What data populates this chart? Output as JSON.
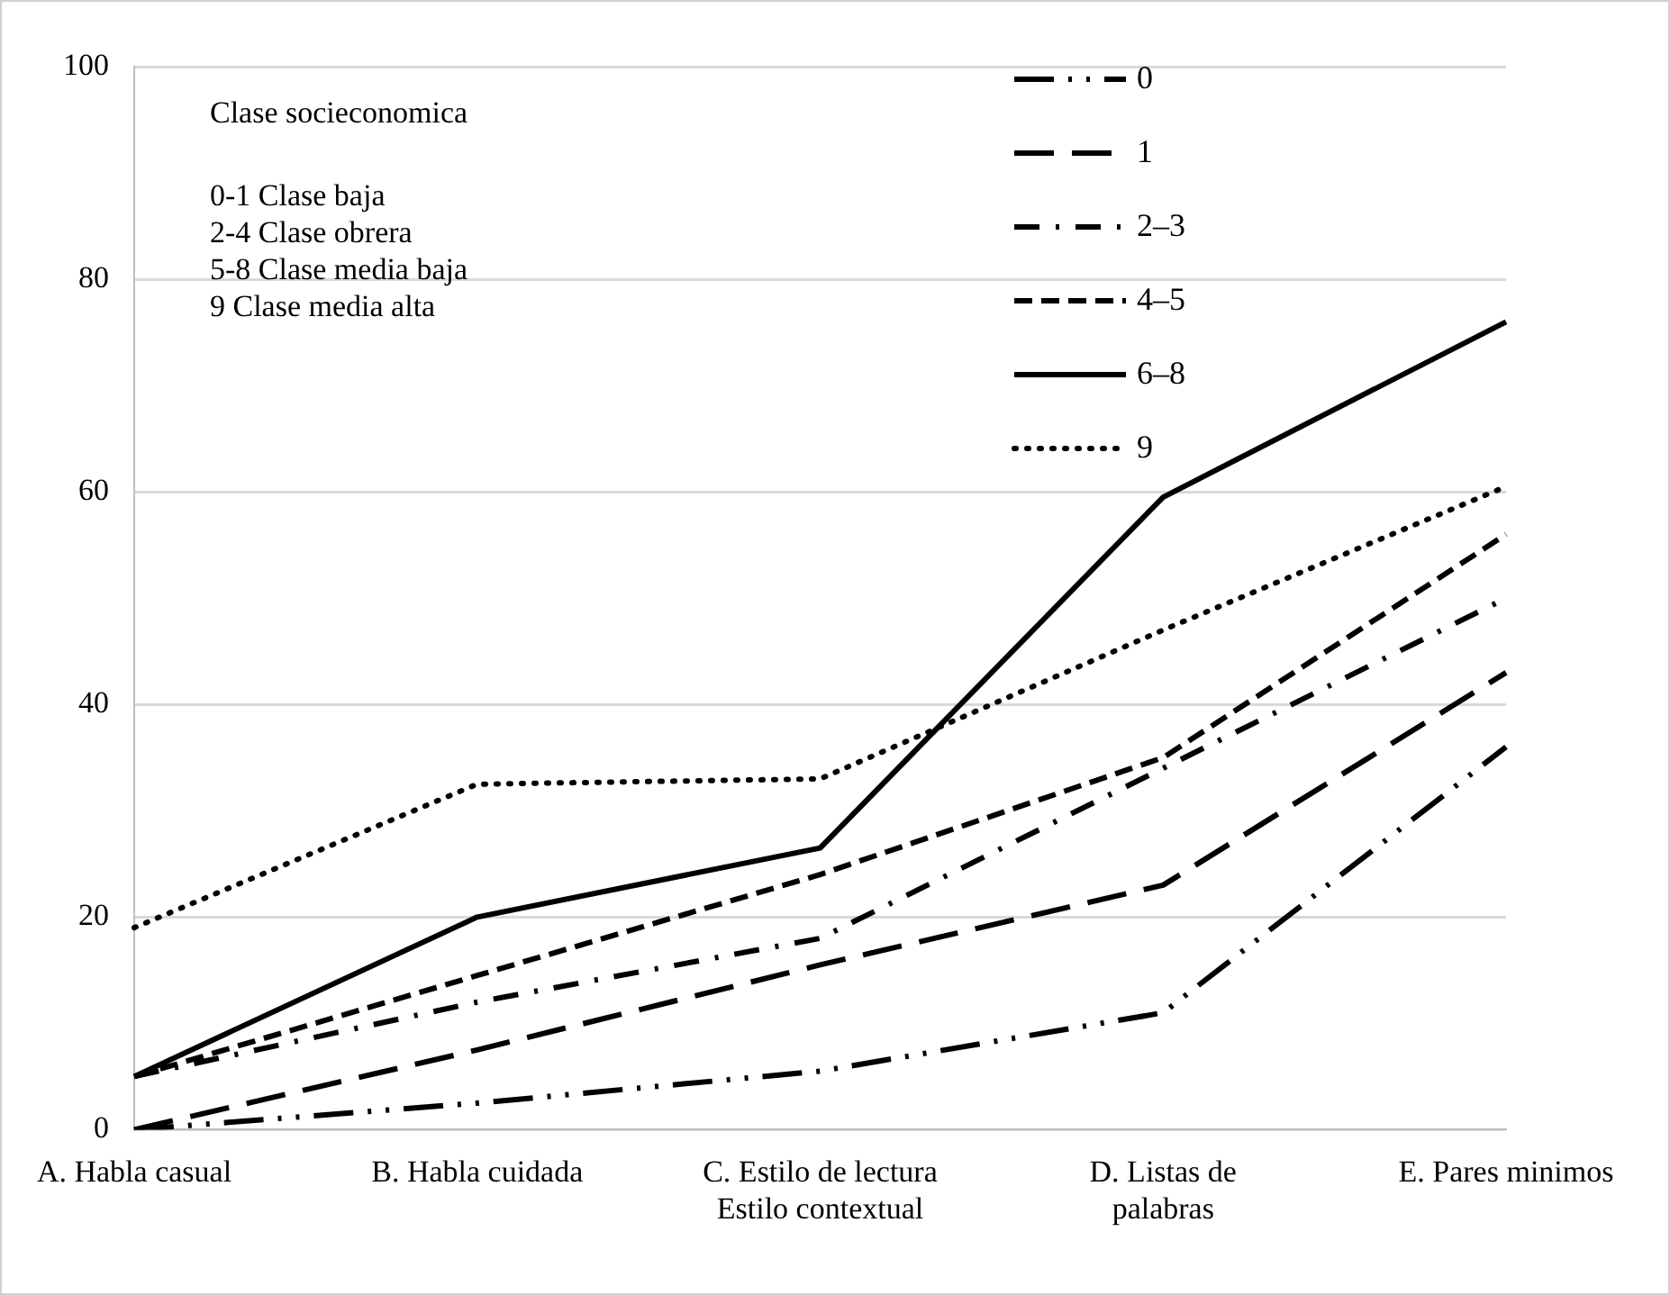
{
  "chart_data": {
    "type": "line",
    "categories": [
      "A. Habla casual",
      "B. Habla cuidada",
      "C. Estilo de lectura\nEstilo contextual",
      "D. Listas de\npalabras",
      "E. Pares minimos"
    ],
    "series": [
      {
        "name": "0",
        "color": "#000000",
        "line_style": "dashdotdot",
        "values": [
          0,
          2.5,
          5.5,
          11,
          36
        ]
      },
      {
        "name": "1",
        "color": "#000000",
        "line_style": "longdash",
        "values": [
          0,
          7.5,
          15.5,
          23,
          43
        ]
      },
      {
        "name": "2–3",
        "color": "#000000",
        "line_style": "dashdot",
        "values": [
          5,
          12,
          18,
          34,
          50
        ]
      },
      {
        "name": "4–5",
        "color": "#000000",
        "line_style": "dashed",
        "values": [
          5,
          14.5,
          24,
          35,
          56
        ]
      },
      {
        "name": "6–8",
        "color": "#000000",
        "line_style": "solid",
        "values": [
          5,
          20,
          26.5,
          59.5,
          76
        ]
      },
      {
        "name": "9",
        "color": "#000000",
        "line_style": "dotted",
        "values": [
          19,
          32.5,
          33,
          47,
          60.5
        ]
      }
    ],
    "ylim": [
      0,
      100
    ],
    "yticks": [
      0,
      20,
      40,
      60,
      80,
      100
    ],
    "grid": "y",
    "legend": "top right",
    "marker": "none",
    "annotations": [
      "Clase socieconomica",
      "0-1 Clase baja",
      "2-4 Clase obrera",
      "5-8 Clase media baja",
      "9 Clase media alta"
    ]
  }
}
